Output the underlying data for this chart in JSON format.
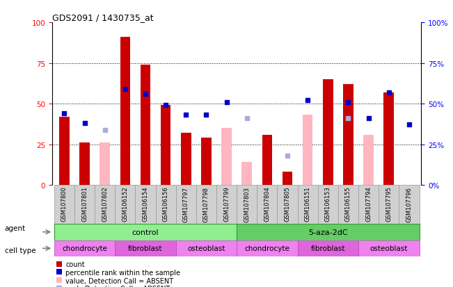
{
  "title": "GDS2091 / 1430735_at",
  "samples": [
    "GSM107800",
    "GSM107801",
    "GSM107802",
    "GSM106152",
    "GSM106154",
    "GSM106156",
    "GSM107797",
    "GSM107798",
    "GSM107799",
    "GSM107803",
    "GSM107804",
    "GSM107805",
    "GSM106151",
    "GSM106153",
    "GSM106155",
    "GSM107794",
    "GSM107795",
    "GSM107796"
  ],
  "count": [
    42,
    26,
    null,
    91,
    74,
    49,
    32,
    29,
    null,
    null,
    31,
    8,
    null,
    65,
    62,
    null,
    57,
    null
  ],
  "percentile_rank": [
    44,
    38,
    null,
    59,
    56,
    49,
    43,
    43,
    51,
    null,
    null,
    null,
    52,
    null,
    51,
    41,
    57,
    37
  ],
  "absent_value": [
    null,
    null,
    26,
    null,
    null,
    null,
    null,
    null,
    35,
    14,
    29,
    null,
    43,
    null,
    null,
    31,
    null,
    null
  ],
  "absent_rank": [
    null,
    null,
    34,
    null,
    null,
    null,
    null,
    null,
    null,
    41,
    null,
    18,
    null,
    null,
    41,
    null,
    null,
    null
  ],
  "agent_groups": [
    {
      "label": "control",
      "start": 0,
      "end": 9,
      "color": "#90EE90"
    },
    {
      "label": "5-aza-2dC",
      "start": 9,
      "end": 18,
      "color": "#66CC66"
    }
  ],
  "cell_type_groups": [
    {
      "label": "chondrocyte",
      "start": 0,
      "end": 3,
      "color": "#EE82EE"
    },
    {
      "label": "fibroblast",
      "start": 3,
      "end": 6,
      "color": "#DD66DD"
    },
    {
      "label": "osteoblast",
      "start": 6,
      "end": 9,
      "color": "#EE82EE"
    },
    {
      "label": "chondrocyte",
      "start": 9,
      "end": 12,
      "color": "#EE82EE"
    },
    {
      "label": "fibroblast",
      "start": 12,
      "end": 15,
      "color": "#DD66DD"
    },
    {
      "label": "osteoblast",
      "start": 15,
      "end": 18,
      "color": "#EE82EE"
    }
  ],
  "bar_color": "#CC0000",
  "rank_color": "#0000CC",
  "absent_val_color": "#FFB6C1",
  "absent_rank_color": "#AAAADD",
  "ylim": [
    0,
    100
  ],
  "yticks": [
    0,
    25,
    50,
    75,
    100
  ],
  "sample_bg": "#D0D0D0",
  "plot_bg": "#FFFFFF",
  "legend_items": [
    {
      "color": "#CC0000",
      "label": "count"
    },
    {
      "color": "#0000CC",
      "label": "percentile rank within the sample"
    },
    {
      "color": "#FFB6C1",
      "label": "value, Detection Call = ABSENT"
    },
    {
      "color": "#AAAADD",
      "label": "rank, Detection Call = ABSENT"
    }
  ]
}
